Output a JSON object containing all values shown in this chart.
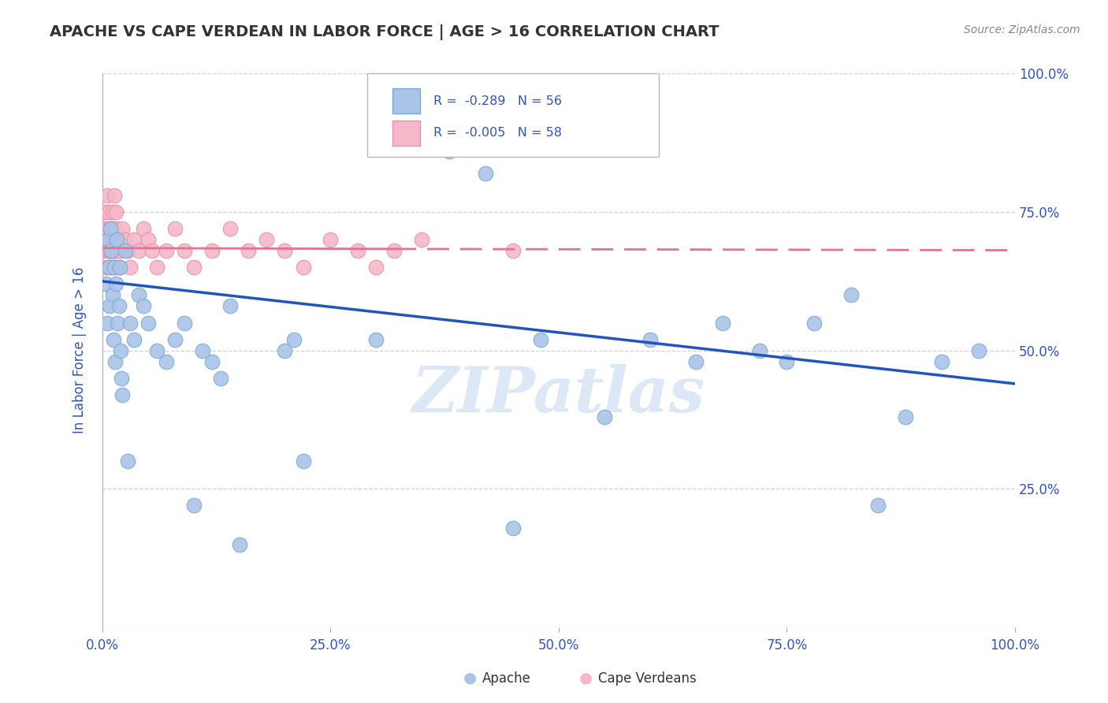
{
  "title": "APACHE VS CAPE VERDEAN IN LABOR FORCE | AGE > 16 CORRELATION CHART",
  "source": "Source: ZipAtlas.com",
  "ylabel": "In Labor Force | Age > 16",
  "xlim": [
    0.0,
    1.0
  ],
  "ylim": [
    0.0,
    1.0
  ],
  "apache_R": -0.289,
  "apache_N": 56,
  "capeverdean_R": -0.005,
  "capeverdean_N": 58,
  "apache_color": "#aac4e8",
  "apache_edge_color": "#7aaad4",
  "capeverdean_color": "#f5b8c8",
  "capeverdean_edge_color": "#e890aa",
  "apache_line_color": "#2255bb",
  "capeverdean_line_color": "#e87090",
  "background_color": "#ffffff",
  "grid_color": "#cccccc",
  "title_color": "#333333",
  "axis_label_color": "#3355bb",
  "tick_label_color": "#3355bb",
  "watermark_color": "#dce8f5",
  "legend_R_color": "#3355bb",
  "apache_x": [
    0.004,
    0.005,
    0.006,
    0.007,
    0.008,
    0.009,
    0.01,
    0.011,
    0.012,
    0.013,
    0.014,
    0.015,
    0.016,
    0.017,
    0.018,
    0.019,
    0.02,
    0.021,
    0.022,
    0.025,
    0.028,
    0.03,
    0.035,
    0.04,
    0.045,
    0.05,
    0.06,
    0.07,
    0.08,
    0.09,
    0.1,
    0.11,
    0.12,
    0.13,
    0.14,
    0.15,
    0.2,
    0.21,
    0.22,
    0.3,
    0.38,
    0.42,
    0.45,
    0.48,
    0.55,
    0.6,
    0.65,
    0.68,
    0.72,
    0.75,
    0.78,
    0.82,
    0.85,
    0.88,
    0.92,
    0.96
  ],
  "apache_y": [
    0.62,
    0.55,
    0.7,
    0.65,
    0.58,
    0.72,
    0.68,
    0.6,
    0.52,
    0.65,
    0.48,
    0.62,
    0.7,
    0.55,
    0.58,
    0.65,
    0.5,
    0.45,
    0.42,
    0.68,
    0.3,
    0.55,
    0.52,
    0.6,
    0.58,
    0.55,
    0.5,
    0.48,
    0.52,
    0.55,
    0.22,
    0.5,
    0.48,
    0.45,
    0.58,
    0.15,
    0.5,
    0.52,
    0.3,
    0.52,
    0.86,
    0.82,
    0.18,
    0.52,
    0.38,
    0.52,
    0.48,
    0.55,
    0.5,
    0.48,
    0.55,
    0.6,
    0.22,
    0.38,
    0.48,
    0.5
  ],
  "capeverdean_x": [
    0.001,
    0.002,
    0.003,
    0.004,
    0.005,
    0.005,
    0.006,
    0.006,
    0.007,
    0.007,
    0.008,
    0.008,
    0.009,
    0.009,
    0.01,
    0.01,
    0.011,
    0.011,
    0.012,
    0.012,
    0.013,
    0.013,
    0.014,
    0.014,
    0.015,
    0.015,
    0.016,
    0.016,
    0.017,
    0.018,
    0.019,
    0.02,
    0.022,
    0.025,
    0.028,
    0.03,
    0.035,
    0.04,
    0.045,
    0.05,
    0.055,
    0.06,
    0.07,
    0.08,
    0.09,
    0.1,
    0.12,
    0.14,
    0.16,
    0.18,
    0.2,
    0.22,
    0.25,
    0.28,
    0.3,
    0.32,
    0.35,
    0.45
  ],
  "capeverdean_y": [
    0.72,
    0.68,
    0.75,
    0.65,
    0.78,
    0.7,
    0.68,
    0.72,
    0.65,
    0.75,
    0.7,
    0.68,
    0.72,
    0.65,
    0.68,
    0.72,
    0.75,
    0.68,
    0.7,
    0.65,
    0.78,
    0.72,
    0.68,
    0.65,
    0.7,
    0.75,
    0.68,
    0.72,
    0.68,
    0.7,
    0.65,
    0.68,
    0.72,
    0.7,
    0.68,
    0.65,
    0.7,
    0.68,
    0.72,
    0.7,
    0.68,
    0.65,
    0.68,
    0.72,
    0.68,
    0.65,
    0.68,
    0.72,
    0.68,
    0.7,
    0.68,
    0.65,
    0.7,
    0.68,
    0.65,
    0.68,
    0.7,
    0.68
  ],
  "apache_line_x": [
    0.0,
    1.0
  ],
  "apache_line_y": [
    0.625,
    0.44
  ],
  "capeverdean_line_x": [
    0.0,
    1.0
  ],
  "capeverdean_line_y": [
    0.685,
    0.681
  ],
  "x_ticks": [
    0.0,
    0.25,
    0.5,
    0.75,
    1.0
  ],
  "x_tick_labels": [
    "0.0%",
    "25.0%",
    "50.0%",
    "75.0%",
    "100.0%"
  ],
  "y_ticks": [
    0.25,
    0.5,
    0.75,
    1.0
  ],
  "y_tick_labels": [
    "25.0%",
    "50.0%",
    "75.0%",
    "100.0%"
  ]
}
